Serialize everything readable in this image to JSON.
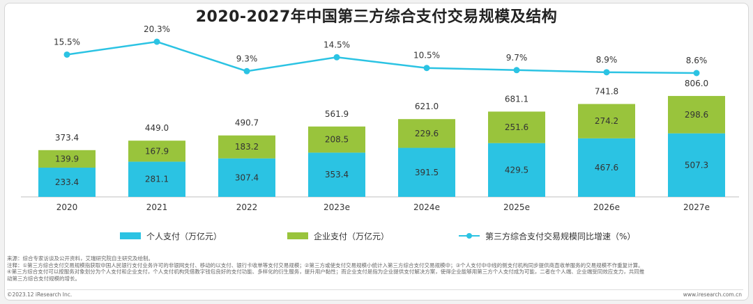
{
  "title": "2020-2027年中国第三方综合支付交易规模及结构",
  "legend": {
    "personal": "个人支付（万亿元）",
    "enterprise": "企业支付（万亿元）",
    "growth": "第三方综合支付交易规模同比增速（%）"
  },
  "colors": {
    "personal": "#2bc3e3",
    "enterprise": "#99c43c",
    "growth": "#2bc3e3",
    "axis": "#bfbfbf"
  },
  "notes": [
    "来源：综合专家访谈及公开资料，艾瑞研究院自主研究及绘制。",
    "注释：①第三方综合支付交易规模指获取中国人民银行支付业务许可的非银网支付、移动的以支付、银行卡收单等支付交易规模；②第三方或使支付交易规模小统计入第三方综合支付交易规模中；③个人支付中中线的侧支付机构同步提供商直收单服务的交易规模不作重复计算。",
    "④第三方综合支付可以按服务对象划分为个人支付和企业支付，个人支付机构凭借教字钱包良好的支付功能、多样化的衍生服务，提升用户黏性；而企业支付是指为企业提供支付解决方案，使得企业能够用第三方个人支付成为可能，二者在个人端、企业端受同效应支力，共同推",
    "动第三方综合支付规模的增长。"
  ],
  "footer": {
    "copyright": "©2023.12 iResearch Inc.",
    "website": "www.iresearch.com.cn"
  },
  "chart_data": {
    "type": "bar",
    "stacked": true,
    "title": "2020-2027年中国第三方综合支付交易规模及结构",
    "categories": [
      "2020",
      "2021",
      "2022",
      "2023e",
      "2024e",
      "2025e",
      "2026e",
      "2027e"
    ],
    "series": [
      {
        "name": "个人支付（万亿元）",
        "type": "bar",
        "values": [
          233.4,
          281.1,
          307.4,
          353.4,
          391.5,
          429.5,
          467.6,
          507.3
        ]
      },
      {
        "name": "企业支付（万亿元）",
        "type": "bar",
        "values": [
          139.9,
          167.9,
          183.2,
          208.5,
          229.6,
          251.6,
          274.2,
          298.6
        ]
      },
      {
        "name": "第三方综合支付交易规模同比增速（%）",
        "type": "line",
        "values": [
          15.5,
          20.3,
          9.3,
          14.5,
          10.5,
          9.7,
          8.9,
          8.6
        ]
      }
    ],
    "totals": [
      373.4,
      449.0,
      490.7,
      561.9,
      621.0,
      681.1,
      741.8,
      806.0
    ],
    "total_labels": [
      "373.4",
      "449.0",
      "490.7",
      "561.9",
      "621.0",
      "681.1",
      "741.8",
      "806.0"
    ],
    "personal_labels": [
      "233.4",
      "281.1",
      "307.4",
      "353.4",
      "391.5",
      "429.5",
      "467.6",
      "507.3"
    ],
    "enterprise_labels": [
      "139.9",
      "167.9",
      "183.2",
      "208.5",
      "229.6",
      "251.6",
      "274.2",
      "298.6"
    ],
    "growth_labels": [
      "15.5%",
      "20.3%",
      "9.3%",
      "14.5%",
      "10.5%",
      "9.7%",
      "8.9%",
      "8.6%"
    ],
    "grid": false,
    "legend_position": "bottom"
  }
}
